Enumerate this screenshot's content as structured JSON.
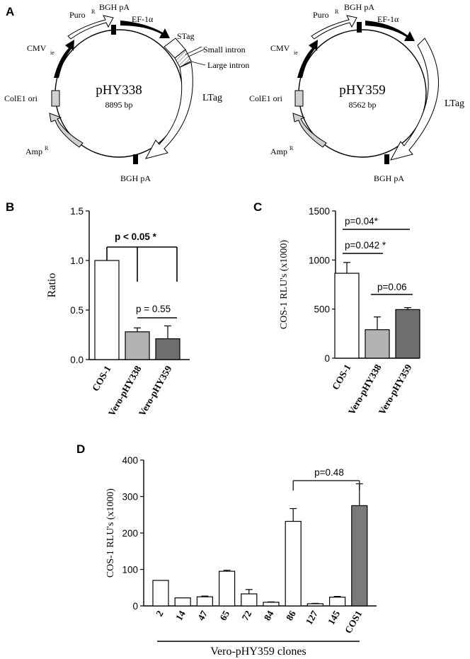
{
  "panels": {
    "A": "A",
    "B": "B",
    "C": "C",
    "D": "D"
  },
  "plasmids": [
    {
      "name": "pHY338",
      "size": "8895 bp",
      "labels": {
        "bgh_top": "BGH pA",
        "ef1a": "EF-1α",
        "puro": "Puro",
        "puro_sup": "R",
        "cmv": "CMV",
        "cmv_sub": "ie",
        "stag": "STag",
        "small_intron": "Small intron",
        "large_intron": "Large intron",
        "ltag": "LTag",
        "cole1": "ColE1 ori",
        "amp": "Amp",
        "amp_sup": "R",
        "bgh_bottom": "BGH pA"
      }
    },
    {
      "name": "pHY359",
      "size": "8562 bp",
      "labels": {
        "bgh_top": "BGH pA",
        "ef1a": "EF-1α",
        "puro": "Puro",
        "puro_sup": "R",
        "cmv": "CMV",
        "cmv_sub": "ie",
        "ltag": "LTag",
        "cole1": "ColE1 ori",
        "amp": "Amp",
        "amp_sup": "R",
        "bgh_bottom": "BGH pA"
      }
    }
  ],
  "chart_data": [
    {
      "panel": "B",
      "type": "bar",
      "ylabel": "Ratio",
      "ylim": [
        0,
        1.5
      ],
      "yticks": [
        "0.0",
        "0.5",
        "1.0",
        "1.5"
      ],
      "categories": [
        "COS-1",
        "Vero-pHY338",
        "Vero-pHY359"
      ],
      "values": [
        1.0,
        0.28,
        0.21
      ],
      "errors": [
        0,
        0.04,
        0.13
      ],
      "colors": [
        "#ffffff",
        "#b3b3b3",
        "#6e6e6e"
      ],
      "annotations": [
        "p < 0.05 *",
        "p = 0.55"
      ]
    },
    {
      "panel": "C",
      "type": "bar",
      "ylabel": "COS-1 RLU's (x1000)",
      "ylim": [
        0,
        1500
      ],
      "yticks": [
        "0",
        "500",
        "1000",
        "1500"
      ],
      "categories": [
        "COS-1",
        "Vero-pHY338",
        "Vero-pHY359"
      ],
      "values": [
        865,
        290,
        495
      ],
      "errors": [
        110,
        130,
        20
      ],
      "colors": [
        "#ffffff",
        "#b3b3b3",
        "#6e6e6e"
      ],
      "annotations": [
        "p=0.04*",
        "p=0.042 *",
        "p=0.06"
      ]
    },
    {
      "panel": "D",
      "type": "bar",
      "ylabel": "COS-1 RLU's (x1000)",
      "xlabel": "Vero-pHY359 clones",
      "ylim": [
        0,
        400
      ],
      "yticks": [
        "0",
        "100",
        "200",
        "300",
        "400"
      ],
      "categories": [
        "2",
        "14",
        "47",
        "65",
        "72",
        "84",
        "86",
        "127",
        "145",
        "COS1"
      ],
      "values": [
        70,
        22,
        25,
        95,
        33,
        10,
        232,
        6,
        24,
        275
      ],
      "errors": [
        0,
        0,
        2,
        3,
        12,
        1,
        35,
        1,
        2,
        60
      ],
      "colors": [
        "#ffffff",
        "#ffffff",
        "#ffffff",
        "#ffffff",
        "#ffffff",
        "#ffffff",
        "#ffffff",
        "#ffffff",
        "#ffffff",
        "#7a7a7a"
      ],
      "annotations": [
        "p=0.48"
      ]
    }
  ]
}
